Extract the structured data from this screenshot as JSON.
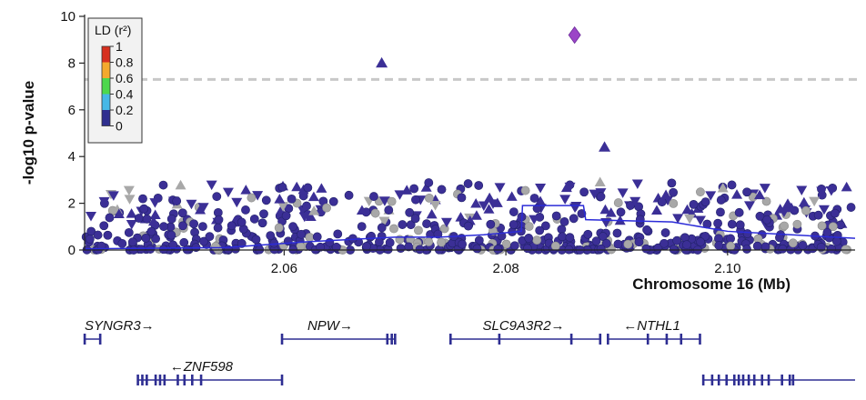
{
  "chart_data": {
    "type": "scatter",
    "title": "",
    "xlabel": "Chromosome 16 (Mb)",
    "ylabel": "-log10 p-value",
    "xlim": [
      2.042,
      2.1115
    ],
    "ylim": [
      0,
      10
    ],
    "x_ticks": [
      {
        "value": 2.06,
        "label": "2.06"
      },
      {
        "value": 2.08,
        "label": "2.08"
      },
      {
        "value": 2.1,
        "label": "2.10"
      }
    ],
    "y_ticks": [
      {
        "value": 0,
        "label": "0"
      },
      {
        "value": 2,
        "label": "2"
      },
      {
        "value": 4,
        "label": "4"
      },
      {
        "value": 6,
        "label": "6"
      },
      {
        "value": 8,
        "label": "8"
      },
      {
        "value": 10,
        "label": "10"
      }
    ],
    "significance_line": 7.3,
    "grid": false,
    "legend": {
      "title": "LD (r²)",
      "placement": "top-left",
      "items": [
        {
          "label": "1",
          "color": "#d7301f"
        },
        {
          "label": "0.8",
          "color": "#f4a92d"
        },
        {
          "label": "0.6",
          "color": "#4dd84d"
        },
        {
          "label": "0.4",
          "color": "#46b8e6"
        },
        {
          "label": "0.2",
          "color": "#2f2f8f"
        },
        {
          "label": "0",
          "color": "#2f2f8f"
        }
      ]
    },
    "highlight_points": [
      {
        "x": 2.0862,
        "y": 9.2,
        "shape": "diamond",
        "color": "#9b45c7"
      },
      {
        "x": 2.0688,
        "y": 8.0,
        "shape": "triangle-up",
        "color": "#3b2f96"
      },
      {
        "x": 2.0889,
        "y": 4.4,
        "shape": "triangle-up",
        "color": "#3b2f96"
      }
    ],
    "background_points": {
      "count": 700,
      "y_range": [
        0,
        3
      ],
      "colors": {
        "low_ld": "#3b2f96",
        "no_ld": "#a8a8a8"
      }
    },
    "recombination_line": [
      [
        2.042,
        0.05
      ],
      [
        2.0545,
        0.1
      ],
      [
        2.062,
        0.35
      ],
      [
        2.066,
        0.45
      ],
      [
        2.07,
        0.55
      ],
      [
        2.074,
        0.55
      ],
      [
        2.078,
        0.65
      ],
      [
        2.0814,
        0.8
      ],
      [
        2.0815,
        1.9
      ],
      [
        2.087,
        1.9
      ],
      [
        2.0872,
        1.3
      ],
      [
        2.095,
        1.2
      ],
      [
        2.1,
        0.8
      ],
      [
        2.1115,
        0.5
      ]
    ],
    "genes": [
      {
        "name": "SYNGR3→",
        "start": 2.042,
        "end": 2.0434,
        "label_x": 2.042,
        "exons": [
          2.042,
          2.0434
        ],
        "row": 0
      },
      {
        "name": "NPW→",
        "start": 2.0598,
        "end": 2.07,
        "label_x": 2.0621,
        "exons": [
          2.0598,
          2.0693,
          2.0697,
          2.07
        ],
        "row": 0
      },
      {
        "name": "SLC9A3R2→",
        "start": 2.075,
        "end": 2.0885,
        "label_x": 2.0779,
        "exons": [
          2.075,
          2.0794,
          2.0859,
          2.0885
        ],
        "row": 0
      },
      {
        "name": "←NTHL1",
        "start": 2.0892,
        "end": 2.0975,
        "label_x": 2.0906,
        "exons": [
          2.0892,
          2.0928,
          2.0945,
          2.0958,
          2.0975
        ],
        "row": 0
      },
      {
        "name": "←ZNF598",
        "start": 2.0468,
        "end": 2.0598,
        "label_x": 2.0497,
        "exons": [
          2.0468,
          2.0472,
          2.0476,
          2.0484,
          2.0488,
          2.0492,
          2.0504,
          2.051,
          2.0517,
          2.0525,
          2.0598
        ],
        "row": 1
      },
      {
        "name": "",
        "start": 2.0978,
        "end": 2.1115,
        "label_x": 2.0978,
        "exons": [
          2.0978,
          2.0986,
          2.0992,
          2.0999,
          2.1006,
          2.101,
          2.1014,
          2.1019,
          2.1024,
          2.1031,
          2.1037,
          2.1049,
          2.1056,
          2.1059
        ],
        "row": 1
      }
    ],
    "gene_color": "#2e2e92"
  }
}
